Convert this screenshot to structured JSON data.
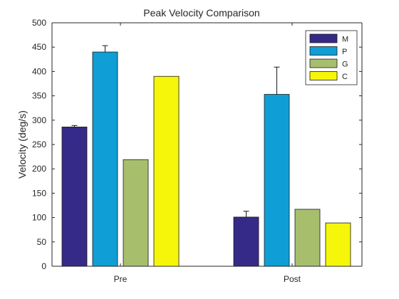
{
  "chart_data": {
    "type": "bar",
    "title": "Peak Velocity Comparison",
    "xlabel": "",
    "ylabel": "Velocity (deg/s)",
    "categories": [
      "Pre",
      "Post"
    ],
    "ylim": [
      0,
      500
    ],
    "yticks": [
      0,
      50,
      100,
      150,
      200,
      250,
      300,
      350,
      400,
      450,
      500
    ],
    "grid": false,
    "legend_position": "top-right",
    "series": [
      {
        "name": "M",
        "color": "#352a87",
        "values": [
          286,
          101
        ],
        "errors": [
          3,
          12
        ]
      },
      {
        "name": "P",
        "color": "#0f9ed5",
        "values": [
          440,
          353
        ],
        "errors": [
          13,
          56
        ]
      },
      {
        "name": "G",
        "color": "#a7bf6d",
        "values": [
          219,
          117
        ],
        "errors": [
          0,
          0
        ]
      },
      {
        "name": "C",
        "color": "#f6f60a",
        "values": [
          390,
          89
        ],
        "errors": [
          0,
          0
        ]
      }
    ]
  }
}
